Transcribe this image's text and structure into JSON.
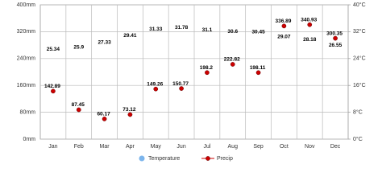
{
  "chart_data": {
    "type": "line",
    "categories": [
      "Jan",
      "Feb",
      "Mar",
      "Apr",
      "May",
      "Jun",
      "Jul",
      "Aug",
      "Sep",
      "Oct",
      "Nov",
      "Dec"
    ],
    "series": [
      {
        "name": "Temperature",
        "color": "#7cb5ec",
        "axis": "y2",
        "values": [
          25.34,
          25.9,
          27.33,
          29.41,
          31.33,
          31.78,
          31.1,
          30.6,
          30.45,
          29.07,
          28.18,
          26.55
        ]
      },
      {
        "name": "Precip",
        "color": "#cc0000",
        "values": [
          142.89,
          87.45,
          60.17,
          73.12,
          149.26,
          150.77,
          198.2,
          222.82,
          198.11,
          336.89,
          340.93,
          300.35
        ]
      }
    ],
    "ylim": [
      0,
      400
    ],
    "yticks": [
      {
        "value": 0,
        "label": "0mm"
      },
      {
        "value": 80,
        "label": "80mm"
      },
      {
        "value": 160,
        "label": "160mm"
      },
      {
        "value": 240,
        "label": "240mm"
      },
      {
        "value": 320,
        "label": "320mm"
      },
      {
        "value": 400,
        "label": "400mm"
      }
    ],
    "y2lim": [
      0,
      40
    ],
    "y2ticks": [
      {
        "value": 0,
        "label": "0°C"
      },
      {
        "value": 8,
        "label": "8°C"
      },
      {
        "value": 16,
        "label": "16°C"
      },
      {
        "value": 24,
        "label": "24°C"
      },
      {
        "value": 32,
        "label": "32°C"
      },
      {
        "value": 40,
        "label": "40°C"
      }
    ],
    "grid": true
  }
}
